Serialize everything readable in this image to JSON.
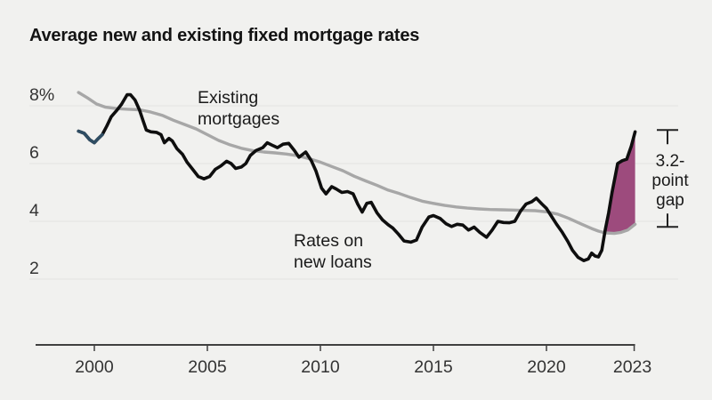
{
  "title": "Average new and existing fixed mortgage rates",
  "labels": {
    "existing": [
      "Existing",
      "mortgages"
    ],
    "new_loans": [
      "Rates on",
      "new loans"
    ],
    "gap": [
      "3.2-",
      "point",
      "gap"
    ]
  },
  "colors": {
    "background": "#f1f1ef",
    "grid": "#e3e3e1",
    "axis": "#404040",
    "tick_text": "#333333",
    "existing_line": "#a7a7a7",
    "new_loans_line": "#0e0e0e",
    "new_loans_start_accent": "#2f4d63",
    "gap_fill": "#9d4b7d",
    "bracket": "#222222"
  },
  "chart_data": {
    "type": "line",
    "title": "Average new and existing fixed mortgage rates",
    "ylabel": "percent",
    "ylim": [
      1.5,
      8.7
    ],
    "x_range": [
      1999.3,
      2023.92
    ],
    "grid": "horizontal-only",
    "y_ticks": [
      {
        "value": 8,
        "label": "8%"
      },
      {
        "value": 6,
        "label": "6"
      },
      {
        "value": 4,
        "label": "4"
      },
      {
        "value": 2,
        "label": "2"
      }
    ],
    "x_ticks": [
      {
        "year": 2000,
        "label": "2000"
      },
      {
        "year": 2005,
        "label": "2005"
      },
      {
        "year": 2010,
        "label": "2010"
      },
      {
        "year": 2015,
        "label": "2015"
      },
      {
        "year": 2020,
        "label": "2020"
      },
      {
        "year": 2023,
        "label": "2023",
        "at_end": true
      }
    ],
    "series": [
      {
        "name": "Existing mortgages",
        "color": "#a7a7a7",
        "points": [
          [
            1999.3,
            8.46
          ],
          [
            1999.7,
            8.27
          ],
          [
            2000.1,
            8.06
          ],
          [
            2000.5,
            7.95
          ],
          [
            2001.0,
            7.9
          ],
          [
            2001.5,
            7.88
          ],
          [
            2002.0,
            7.86
          ],
          [
            2002.5,
            7.78
          ],
          [
            2003.0,
            7.67
          ],
          [
            2003.5,
            7.5
          ],
          [
            2004.0,
            7.35
          ],
          [
            2004.5,
            7.2
          ],
          [
            2005.0,
            7.0
          ],
          [
            2005.5,
            6.8
          ],
          [
            2006.0,
            6.65
          ],
          [
            2006.5,
            6.53
          ],
          [
            2007.0,
            6.45
          ],
          [
            2007.5,
            6.4
          ],
          [
            2008.0,
            6.37
          ],
          [
            2008.5,
            6.33
          ],
          [
            2009.0,
            6.27
          ],
          [
            2009.5,
            6.17
          ],
          [
            2010.0,
            6.05
          ],
          [
            2010.5,
            5.9
          ],
          [
            2011.0,
            5.75
          ],
          [
            2011.5,
            5.56
          ],
          [
            2012.0,
            5.4
          ],
          [
            2012.5,
            5.25
          ],
          [
            2013.0,
            5.08
          ],
          [
            2013.5,
            4.96
          ],
          [
            2014.0,
            4.82
          ],
          [
            2014.5,
            4.7
          ],
          [
            2015.0,
            4.62
          ],
          [
            2015.5,
            4.55
          ],
          [
            2016.0,
            4.5
          ],
          [
            2016.5,
            4.46
          ],
          [
            2017.0,
            4.43
          ],
          [
            2017.5,
            4.41
          ],
          [
            2018.0,
            4.4
          ],
          [
            2018.5,
            4.39
          ],
          [
            2019.0,
            4.38
          ],
          [
            2019.5,
            4.37
          ],
          [
            2020.0,
            4.33
          ],
          [
            2020.5,
            4.25
          ],
          [
            2021.0,
            4.1
          ],
          [
            2021.5,
            3.92
          ],
          [
            2022.0,
            3.75
          ],
          [
            2022.3,
            3.66
          ],
          [
            2022.6,
            3.6
          ],
          [
            2023.0,
            3.58
          ],
          [
            2023.3,
            3.62
          ],
          [
            2023.6,
            3.7
          ],
          [
            2023.92,
            3.9
          ]
        ]
      },
      {
        "name": "Rates on new loans",
        "color": "#0e0e0e",
        "accent_until": 2000.4,
        "points": [
          [
            1999.3,
            7.12
          ],
          [
            1999.55,
            7.05
          ],
          [
            1999.8,
            6.82
          ],
          [
            2000.0,
            6.72
          ],
          [
            2000.15,
            6.85
          ],
          [
            2000.35,
            7.0
          ],
          [
            2000.55,
            7.3
          ],
          [
            2000.75,
            7.62
          ],
          [
            2001.0,
            7.85
          ],
          [
            2001.2,
            8.05
          ],
          [
            2001.45,
            8.38
          ],
          [
            2001.6,
            8.38
          ],
          [
            2001.8,
            8.2
          ],
          [
            2002.0,
            7.85
          ],
          [
            2002.15,
            7.5
          ],
          [
            2002.3,
            7.16
          ],
          [
            2002.5,
            7.1
          ],
          [
            2002.75,
            7.08
          ],
          [
            2002.95,
            7.0
          ],
          [
            2003.1,
            6.72
          ],
          [
            2003.3,
            6.87
          ],
          [
            2003.45,
            6.78
          ],
          [
            2003.65,
            6.52
          ],
          [
            2003.9,
            6.32
          ],
          [
            2004.1,
            6.05
          ],
          [
            2004.35,
            5.8
          ],
          [
            2004.6,
            5.55
          ],
          [
            2004.85,
            5.47
          ],
          [
            2005.1,
            5.55
          ],
          [
            2005.35,
            5.8
          ],
          [
            2005.6,
            5.92
          ],
          [
            2005.85,
            6.08
          ],
          [
            2006.05,
            6.0
          ],
          [
            2006.25,
            5.83
          ],
          [
            2006.5,
            5.88
          ],
          [
            2006.7,
            6.0
          ],
          [
            2006.9,
            6.28
          ],
          [
            2007.15,
            6.45
          ],
          [
            2007.45,
            6.55
          ],
          [
            2007.65,
            6.72
          ],
          [
            2007.9,
            6.62
          ],
          [
            2008.1,
            6.55
          ],
          [
            2008.35,
            6.67
          ],
          [
            2008.6,
            6.7
          ],
          [
            2008.85,
            6.45
          ],
          [
            2009.05,
            6.22
          ],
          [
            2009.35,
            6.4
          ],
          [
            2009.6,
            6.1
          ],
          [
            2009.8,
            5.75
          ],
          [
            2010.05,
            5.15
          ],
          [
            2010.25,
            4.95
          ],
          [
            2010.5,
            5.2
          ],
          [
            2010.7,
            5.12
          ],
          [
            2010.95,
            5.0
          ],
          [
            2011.2,
            5.03
          ],
          [
            2011.45,
            4.95
          ],
          [
            2011.65,
            4.6
          ],
          [
            2011.85,
            4.32
          ],
          [
            2012.05,
            4.62
          ],
          [
            2012.25,
            4.66
          ],
          [
            2012.5,
            4.3
          ],
          [
            2012.75,
            4.05
          ],
          [
            2013.0,
            3.88
          ],
          [
            2013.2,
            3.77
          ],
          [
            2013.45,
            3.56
          ],
          [
            2013.7,
            3.32
          ],
          [
            2014.0,
            3.28
          ],
          [
            2014.25,
            3.35
          ],
          [
            2014.5,
            3.8
          ],
          [
            2014.8,
            4.15
          ],
          [
            2015.0,
            4.2
          ],
          [
            2015.3,
            4.1
          ],
          [
            2015.55,
            3.92
          ],
          [
            2015.8,
            3.82
          ],
          [
            2016.05,
            3.9
          ],
          [
            2016.3,
            3.87
          ],
          [
            2016.55,
            3.7
          ],
          [
            2016.8,
            3.8
          ],
          [
            2017.05,
            3.62
          ],
          [
            2017.35,
            3.45
          ],
          [
            2017.6,
            3.7
          ],
          [
            2017.85,
            4.0
          ],
          [
            2018.1,
            3.96
          ],
          [
            2018.35,
            3.95
          ],
          [
            2018.6,
            4.0
          ],
          [
            2018.85,
            4.35
          ],
          [
            2019.1,
            4.6
          ],
          [
            2019.35,
            4.68
          ],
          [
            2019.55,
            4.8
          ],
          [
            2019.8,
            4.6
          ],
          [
            2020.0,
            4.45
          ],
          [
            2020.2,
            4.2
          ],
          [
            2020.45,
            3.9
          ],
          [
            2020.7,
            3.62
          ],
          [
            2020.95,
            3.3
          ],
          [
            2021.15,
            3.0
          ],
          [
            2021.4,
            2.75
          ],
          [
            2021.65,
            2.64
          ],
          [
            2021.85,
            2.7
          ],
          [
            2022.0,
            2.9
          ],
          [
            2022.15,
            2.8
          ],
          [
            2022.3,
            2.77
          ],
          [
            2022.45,
            3.0
          ],
          [
            2022.6,
            3.7
          ],
          [
            2022.75,
            4.3
          ],
          [
            2022.9,
            5.0
          ],
          [
            2023.05,
            5.6
          ],
          [
            2023.15,
            6.0
          ],
          [
            2023.35,
            6.1
          ],
          [
            2023.55,
            6.15
          ],
          [
            2023.75,
            6.6
          ],
          [
            2023.92,
            7.1
          ]
        ]
      }
    ],
    "gap_area": {
      "from_year": 2022.58,
      "fill": "#9d4b7d",
      "label": "3.2-point gap",
      "gap_points": 3.2,
      "new_loans_end": 7.1,
      "existing_end": 3.9
    }
  }
}
